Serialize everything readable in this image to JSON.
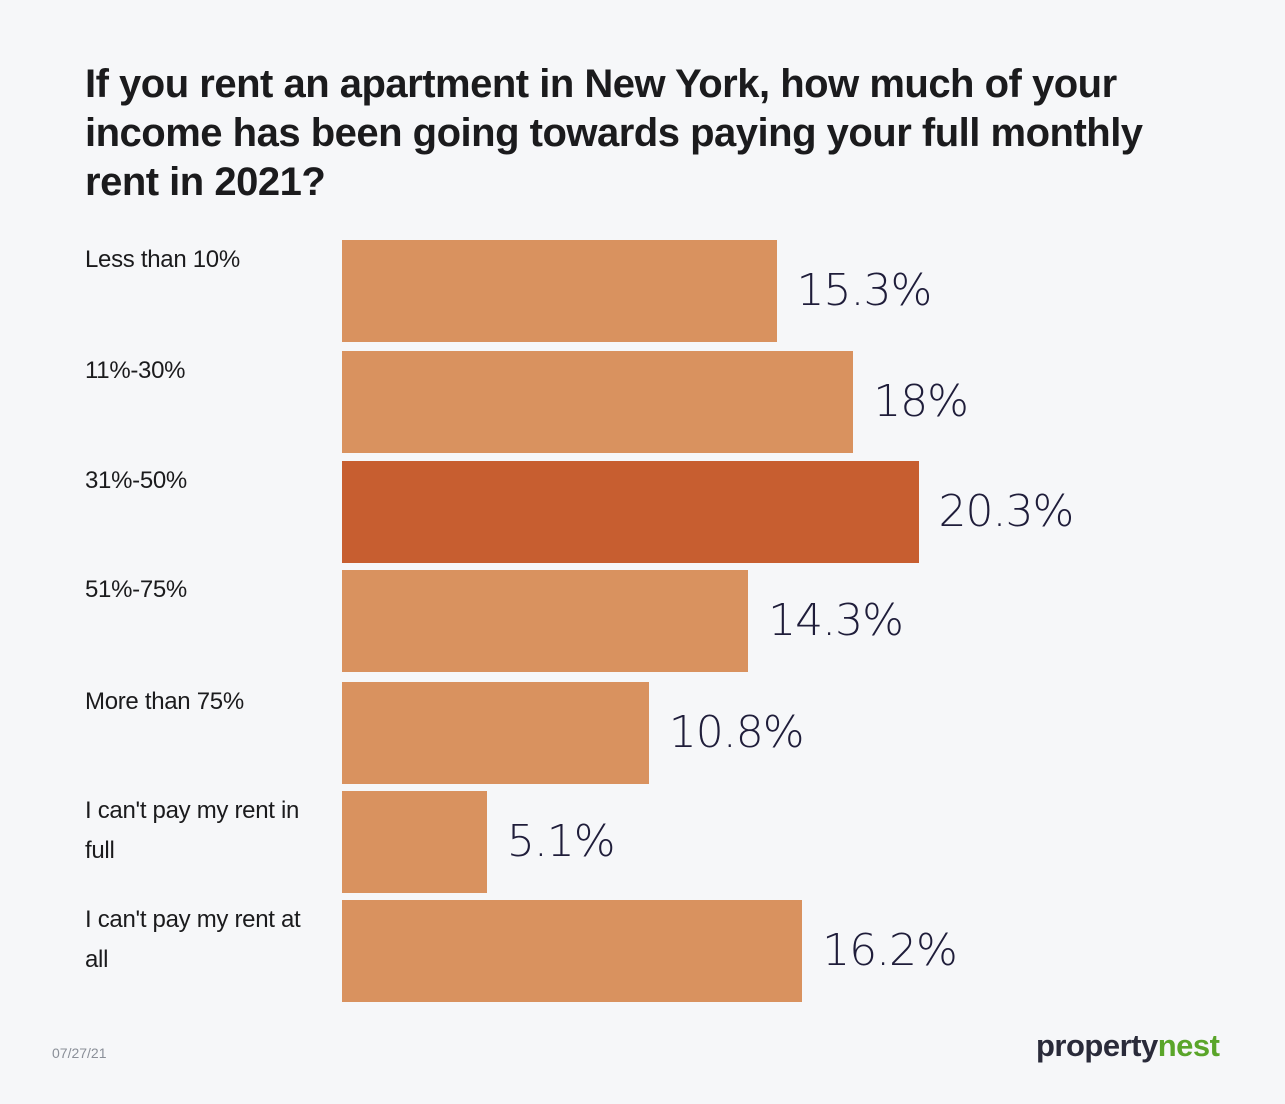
{
  "chart_data": {
    "type": "bar",
    "orientation": "horizontal",
    "title": "If you rent an apartment in New York, how much of your income has been going towards paying your full monthly rent in 2021?",
    "categories": [
      "Less than 10%",
      "11%-30%",
      "31%-50%",
      "51%-75%",
      "More than 75%",
      "I can't pay my rent in full",
      "I can't pay my rent at all"
    ],
    "values": [
      15.3,
      18,
      20.3,
      14.3,
      10.8,
      5.1,
      16.2
    ],
    "data_labels": [
      "15.3%",
      "18%",
      "20.3%",
      "14.3%",
      "10.8%",
      "5.1%",
      "16.2%"
    ],
    "highlight_index": 2,
    "xlabel": "",
    "ylabel": "",
    "grid": false,
    "colors": {
      "bar": "#d9925f",
      "highlight": "#c75e30",
      "value_text": "#1f1d3a"
    }
  },
  "footer": {
    "date": "07/27/21"
  },
  "logo": {
    "part1": "property",
    "part2": "nest",
    "colors": [
      "#2a2b3a",
      "#5aa52a"
    ]
  }
}
